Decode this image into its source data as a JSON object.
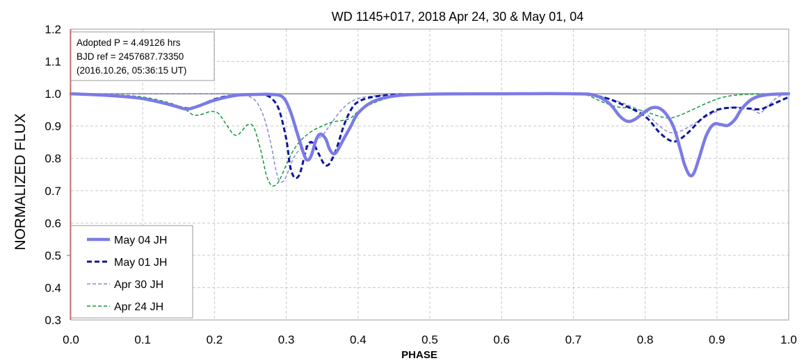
{
  "chart_data": {
    "type": "line",
    "title": "WD 1145+017, 2018 Apr 24, 30 & May 01, 04",
    "xlabel": "PHASE",
    "ylabel": "NORMALIZED FLUX",
    "xlim": [
      0.0,
      1.0
    ],
    "ylim": [
      0.3,
      1.2
    ],
    "x_ticks": [
      "0.0",
      "0.1",
      "0.2",
      "0.3",
      "0.4",
      "0.5",
      "0.6",
      "0.7",
      "0.8",
      "0.9",
      "1.0"
    ],
    "y_ticks": [
      "0.3",
      "0.4",
      "0.5",
      "0.6",
      "0.7",
      "0.8",
      "0.9",
      "1.0",
      "1.1",
      "1.2"
    ],
    "grid": true,
    "reference_line": 1.0,
    "annotation": [
      "Adopted P = 4.49126 hrs",
      "BJD ref = 2457687.73350",
      "(2016.10.26, 05:36:15 UT)"
    ],
    "legend_position": "bottom-left",
    "series": [
      {
        "name": "May 04 JH",
        "color": "#7b7be6",
        "style": "solid-thick",
        "points": [
          [
            0.0,
            1.0
          ],
          [
            0.05,
            0.995
          ],
          [
            0.1,
            0.985
          ],
          [
            0.14,
            0.965
          ],
          [
            0.16,
            0.953
          ],
          [
            0.175,
            0.96
          ],
          [
            0.2,
            0.98
          ],
          [
            0.23,
            0.995
          ],
          [
            0.26,
            0.998
          ],
          [
            0.28,
            0.998
          ],
          [
            0.295,
            0.99
          ],
          [
            0.305,
            0.95
          ],
          [
            0.315,
            0.88
          ],
          [
            0.325,
            0.81
          ],
          [
            0.33,
            0.795
          ],
          [
            0.335,
            0.81
          ],
          [
            0.342,
            0.86
          ],
          [
            0.348,
            0.875
          ],
          [
            0.355,
            0.86
          ],
          [
            0.36,
            0.83
          ],
          [
            0.365,
            0.815
          ],
          [
            0.37,
            0.82
          ],
          [
            0.38,
            0.86
          ],
          [
            0.39,
            0.9
          ],
          [
            0.4,
            0.94
          ],
          [
            0.42,
            0.975
          ],
          [
            0.45,
            0.993
          ],
          [
            0.5,
            0.999
          ],
          [
            0.6,
            1.0
          ],
          [
            0.7,
            1.0
          ],
          [
            0.73,
            0.995
          ],
          [
            0.75,
            0.97
          ],
          [
            0.765,
            0.93
          ],
          [
            0.775,
            0.915
          ],
          [
            0.785,
            0.92
          ],
          [
            0.8,
            0.945
          ],
          [
            0.81,
            0.957
          ],
          [
            0.82,
            0.955
          ],
          [
            0.83,
            0.935
          ],
          [
            0.84,
            0.895
          ],
          [
            0.85,
            0.82
          ],
          [
            0.855,
            0.78
          ],
          [
            0.862,
            0.748
          ],
          [
            0.868,
            0.755
          ],
          [
            0.875,
            0.8
          ],
          [
            0.885,
            0.87
          ],
          [
            0.895,
            0.905
          ],
          [
            0.905,
            0.905
          ],
          [
            0.915,
            0.902
          ],
          [
            0.925,
            0.92
          ],
          [
            0.935,
            0.955
          ],
          [
            0.95,
            0.985
          ],
          [
            0.97,
            0.997
          ],
          [
            1.0,
            1.0
          ]
        ]
      },
      {
        "name": "May 01 JH",
        "color": "#0a14a0",
        "style": "dashed-bold",
        "points": [
          [
            0.0,
            1.0
          ],
          [
            0.05,
            0.995
          ],
          [
            0.1,
            0.985
          ],
          [
            0.14,
            0.965
          ],
          [
            0.165,
            0.955
          ],
          [
            0.18,
            0.965
          ],
          [
            0.2,
            0.983
          ],
          [
            0.22,
            0.993
          ],
          [
            0.25,
            0.998
          ],
          [
            0.27,
            0.996
          ],
          [
            0.28,
            0.985
          ],
          [
            0.29,
            0.95
          ],
          [
            0.3,
            0.86
          ],
          [
            0.305,
            0.78
          ],
          [
            0.31,
            0.745
          ],
          [
            0.315,
            0.74
          ],
          [
            0.32,
            0.76
          ],
          [
            0.328,
            0.83
          ],
          [
            0.333,
            0.85
          ],
          [
            0.338,
            0.845
          ],
          [
            0.345,
            0.815
          ],
          [
            0.352,
            0.785
          ],
          [
            0.357,
            0.778
          ],
          [
            0.362,
            0.79
          ],
          [
            0.37,
            0.83
          ],
          [
            0.38,
            0.9
          ],
          [
            0.39,
            0.95
          ],
          [
            0.4,
            0.975
          ],
          [
            0.42,
            0.99
          ],
          [
            0.45,
            0.997
          ],
          [
            0.5,
            0.999
          ],
          [
            0.6,
            1.0
          ],
          [
            0.7,
            1.0
          ],
          [
            0.74,
            0.99
          ],
          [
            0.77,
            0.965
          ],
          [
            0.8,
            0.93
          ],
          [
            0.82,
            0.88
          ],
          [
            0.835,
            0.855
          ],
          [
            0.845,
            0.855
          ],
          [
            0.86,
            0.88
          ],
          [
            0.88,
            0.925
          ],
          [
            0.9,
            0.95
          ],
          [
            0.92,
            0.957
          ],
          [
            0.94,
            0.955
          ],
          [
            0.96,
            0.952
          ],
          [
            0.97,
            0.96
          ],
          [
            0.98,
            0.97
          ],
          [
            0.99,
            0.98
          ],
          [
            1.0,
            0.99
          ]
        ]
      },
      {
        "name": "Apr 30 JH",
        "color": "#8888d0",
        "style": "dashed-thin",
        "points": [
          [
            0.0,
            1.0
          ],
          [
            0.1,
            1.0
          ],
          [
            0.2,
            1.0
          ],
          [
            0.22,
            0.999
          ],
          [
            0.24,
            0.997
          ],
          [
            0.25,
            0.99
          ],
          [
            0.26,
            0.97
          ],
          [
            0.27,
            0.92
          ],
          [
            0.28,
            0.83
          ],
          [
            0.285,
            0.77
          ],
          [
            0.29,
            0.732
          ],
          [
            0.295,
            0.728
          ],
          [
            0.3,
            0.745
          ],
          [
            0.31,
            0.8
          ],
          [
            0.32,
            0.83
          ],
          [
            0.33,
            0.84
          ],
          [
            0.34,
            0.855
          ],
          [
            0.35,
            0.87
          ],
          [
            0.36,
            0.9
          ],
          [
            0.375,
            0.945
          ],
          [
            0.39,
            0.975
          ],
          [
            0.41,
            0.99
          ],
          [
            0.45,
            0.997
          ],
          [
            0.5,
            1.0
          ],
          [
            0.7,
            1.0
          ],
          [
            0.74,
            0.99
          ],
          [
            0.77,
            0.97
          ],
          [
            0.8,
            0.94
          ],
          [
            0.82,
            0.9
          ],
          [
            0.835,
            0.88
          ],
          [
            0.85,
            0.885
          ],
          [
            0.87,
            0.91
          ],
          [
            0.89,
            0.935
          ],
          [
            0.91,
            0.955
          ],
          [
            0.93,
            0.958
          ],
          [
            0.95,
            0.95
          ],
          [
            0.96,
            0.94
          ],
          [
            0.97,
            0.96
          ],
          [
            0.985,
            0.99
          ],
          [
            1.0,
            1.0
          ]
        ]
      },
      {
        "name": "Apr 24 JH",
        "color": "#109a3a",
        "style": "dashed-thin",
        "points": [
          [
            0.0,
            1.0
          ],
          [
            0.05,
            0.998
          ],
          [
            0.1,
            0.99
          ],
          [
            0.14,
            0.97
          ],
          [
            0.16,
            0.95
          ],
          [
            0.17,
            0.935
          ],
          [
            0.18,
            0.935
          ],
          [
            0.195,
            0.945
          ],
          [
            0.205,
            0.94
          ],
          [
            0.215,
            0.91
          ],
          [
            0.225,
            0.878
          ],
          [
            0.232,
            0.872
          ],
          [
            0.24,
            0.89
          ],
          [
            0.247,
            0.905
          ],
          [
            0.255,
            0.895
          ],
          [
            0.265,
            0.82
          ],
          [
            0.272,
            0.75
          ],
          [
            0.278,
            0.72
          ],
          [
            0.283,
            0.715
          ],
          [
            0.29,
            0.73
          ],
          [
            0.3,
            0.78
          ],
          [
            0.31,
            0.825
          ],
          [
            0.32,
            0.855
          ],
          [
            0.33,
            0.875
          ],
          [
            0.34,
            0.89
          ],
          [
            0.35,
            0.9
          ],
          [
            0.36,
            0.91
          ],
          [
            0.37,
            0.915
          ],
          [
            0.38,
            0.918
          ],
          [
            0.39,
            0.925
          ],
          [
            0.4,
            0.945
          ],
          [
            0.42,
            0.97
          ],
          [
            0.45,
            0.99
          ],
          [
            0.5,
            0.998
          ],
          [
            0.7,
            1.0
          ],
          [
            0.72,
            0.995
          ],
          [
            0.74,
            0.975
          ],
          [
            0.76,
            0.96
          ],
          [
            0.78,
            0.955
          ],
          [
            0.8,
            0.945
          ],
          [
            0.82,
            0.93
          ],
          [
            0.835,
            0.925
          ],
          [
            0.85,
            0.935
          ],
          [
            0.87,
            0.955
          ],
          [
            0.89,
            0.975
          ],
          [
            0.91,
            0.99
          ],
          [
            0.94,
            0.998
          ],
          [
            1.0,
            1.0
          ]
        ]
      }
    ]
  }
}
